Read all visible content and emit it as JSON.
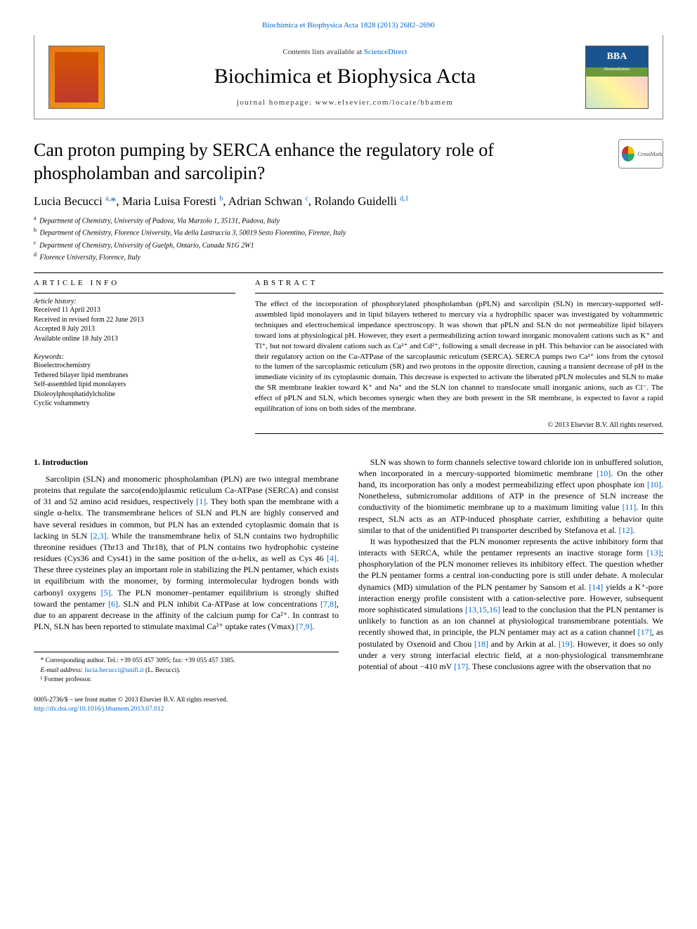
{
  "top_link": {
    "prefix": "Biochimica et Biophysica Acta 1828 (2013) 2682–2690"
  },
  "header": {
    "contents_prefix": "Contents lists available at ",
    "contents_link": "ScienceDirect",
    "journal": "Biochimica et Biophysica Acta",
    "homepage_prefix": "journal homepage: ",
    "homepage": "www.elsevier.com/locate/bbamem",
    "bba_label": "BBA",
    "bba_sub": "Biomembranes",
    "crossmark": "CrossMark",
    "crossmark_colors": [
      "#c0392b",
      "#f1c40f",
      "#27ae60",
      "#2980b9"
    ]
  },
  "title": "Can proton pumping by SERCA enhance the regulatory role of phospholamban and sarcolipin?",
  "authors_html": "Lucia Becucci <sup>a,</sup>*, Maria Luisa Foresti <sup>b</sup>, Adrian Schwan <sup>c</sup>, Rolando Guidelli <sup>d,1</sup>",
  "affiliations": [
    {
      "sup": "a",
      "text": "Department of Chemistry, University of Padova, Via Marzolo 1, 35131, Padova, Italy"
    },
    {
      "sup": "b",
      "text": "Department of Chemistry, Florence University, Via della Lastruccia 3, 50019 Sesto Fiorentino, Firenze, Italy"
    },
    {
      "sup": "c",
      "text": "Department of Chemistry, University of Guelph, Ontario, Canada N1G 2W1"
    },
    {
      "sup": "d",
      "text": "Florence University, Florence, Italy"
    }
  ],
  "article_info": {
    "section_title": "ARTICLE INFO",
    "history_label": "Article history:",
    "history": [
      "Received 11 April 2013",
      "Received in revised form 22 June 2013",
      "Accepted 8 July 2013",
      "Available online 18 July 2013"
    ],
    "keywords_label": "Keywords:",
    "keywords": [
      "Bioelectrochemistry",
      "Tethered bilayer lipid membranes",
      "Self-assembled lipid monolayers",
      "Dioleoylphosphatidylcholine",
      "Cyclic voltammetry"
    ]
  },
  "abstract": {
    "section_title": "ABSTRACT",
    "text": "The effect of the incorporation of phosphorylated phospholamban (pPLN) and sarcolipin (SLN) in mercury-supported self-assembled lipid monolayers and in lipid bilayers tethered to mercury via a hydrophilic spacer was investigated by voltammetric techniques and electrochemical impedance spectroscopy. It was shown that pPLN and SLN do not permeabilize lipid bilayers toward ions at physiological pH. However, they exert a permeabilizing action toward inorganic monovalent cations such as K⁺ and Tl⁺, but not toward divalent cations such as Ca²⁺ and Cd²⁺, following a small decrease in pH. This behavior can be associated with their regulatory action on the Ca-ATPase of the sarcoplasmic reticulum (SERCA). SERCA pumps two Ca²⁺ ions from the cytosol to the lumen of the sarcoplasmic reticulum (SR) and two protons in the opposite direction, causing a transient decrease of pH in the immediate vicinity of its cytoplasmic domain. This decrease is expected to activate the liberated pPLN molecules and SLN to make the SR membrane leakier toward K⁺ and Na⁺ and the SLN ion channel to translocate small inorganic anions, such as Cl⁻. The effect of pPLN and SLN, which becomes synergic when they are both present in the SR membrane, is expected to favor a rapid equilibration of ions on both sides of the membrane.",
    "copyright": "© 2013 Elsevier B.V. All rights reserved."
  },
  "intro_title": "1. Introduction",
  "left_col": "Sarcolipin (SLN) and monomeric phospholamban (PLN) are two integral membrane proteins that regulate the sarco(endo)plasmic reticulum Ca-ATPase (SERCA) and consist of 31 and 52 amino acid residues, respectively [1]. They both span the membrane with a single α-helix. The transmembrane helices of SLN and PLN are highly conserved and have several residues in common, but PLN has an extended cytoplasmic domain that is lacking in SLN [2,3]. While the transmembrane helix of SLN contains two hydrophilic threonine residues (Thr13 and Thr18), that of PLN contains two hydrophobic cysteine residues (Cys36 and Cys41) in the same position of the α-helix, as well as Cys 46 [4]. These three cysteines play an important role in stabilizing the PLN pentamer, which exists in equilibrium with the monomer, by forming intermolecular hydrogen bonds with carbonyl oxygens [5]. The PLN monomer–pentamer equilibrium is strongly shifted toward the pentamer [6]. SLN and PLN inhibit Ca-ATPase at low concentrations [7,8], due to an apparent decrease in the affinity of the calcium pump for Ca²⁺. In contrast to PLN, SLN has been reported to stimulate maximal Ca²⁺ uptake rates (Vmax) [7,9].",
  "right_col_p1": "SLN was shown to form channels selective toward chloride ion in unbuffered solution, when incorporated in a mercury-supported biomimetic membrane [10]. On the other hand, its incorporation has only a modest permeabilizing effect upon phosphate ion [10]. Nonetheless, submicromolar additions of ATP in the presence of SLN increase the conductivity of the biomimetic membrane up to a maximum limiting value [11]. In this respect, SLN acts as an ATP-induced phosphate carrier, exhibiting a behavior quite similar to that of the unidentified Pi transporter described by Stefanova et al. [12].",
  "right_col_p2": "It was hypothesized that the PLN monomer represents the active inhibitory form that interacts with SERCA, while the pentamer represents an inactive storage form [13]; phosphorylation of the PLN monomer relieves its inhibitory effect. The question whether the PLN pentamer forms a central ion-conducting pore is still under debate. A molecular dynamics (MD) simulation of the PLN pentamer by Sansom et al. [14] yields a K⁺-pore interaction energy profile consistent with a cation-selective pore. However, subsequent more sophisticated simulations [13,15,16] lead to the conclusion that the PLN pentamer is unlikely to function as an ion channel at physiological transmembrane potentials. We recently showed that, in principle, the PLN pentamer may act as a cation channel [17], as postulated by Oxenoid and Chou [18] and by Arkin at al. [19]. However, it does so only under a very strong interfacial electric field, at a non-physiological transmembrane potential of about −410 mV [17]. These conclusions agree with the observation that no",
  "footnotes": {
    "corresponding": "* Corresponding author. Tel.: +39 055 457 3095; fax: +39 055 457 3385.",
    "email_label": "E-mail address: ",
    "email": "lucia.becucci@unifi.it",
    "email_suffix": " (L. Becucci).",
    "former": "¹ Former professor."
  },
  "footer": {
    "line1": "0005-2736/$ – see front matter © 2013 Elsevier B.V. All rights reserved.",
    "doi": "http://dx.doi.org/10.1016/j.bbamem.2013.07.012"
  },
  "colors": {
    "link": "#0066cc",
    "rule": "#000000"
  }
}
